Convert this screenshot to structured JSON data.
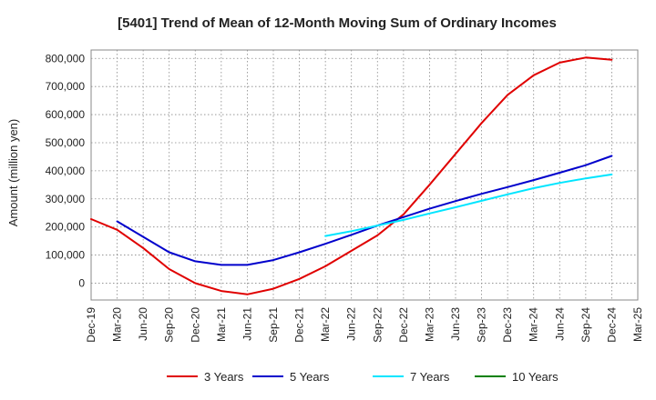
{
  "chart_data": {
    "type": "line",
    "title": "[5401]  Trend of Mean of 12-Month Moving Sum of Ordinary Incomes",
    "xlabel": "",
    "ylabel": "Amount (million yen)",
    "ylim": [
      -60000,
      830000
    ],
    "yticks": [
      0,
      100000,
      200000,
      300000,
      400000,
      500000,
      600000,
      700000,
      800000
    ],
    "ytick_labels": [
      "0",
      "100,000",
      "200,000",
      "300,000",
      "400,000",
      "500,000",
      "600,000",
      "700,000",
      "800,000"
    ],
    "categories": [
      "Dec-19",
      "Mar-20",
      "Jun-20",
      "Sep-20",
      "Dec-20",
      "Mar-21",
      "Jun-21",
      "Sep-21",
      "Dec-21",
      "Mar-22",
      "Jun-22",
      "Sep-22",
      "Dec-22",
      "Mar-23",
      "Jun-23",
      "Sep-23",
      "Dec-23",
      "Mar-24",
      "Jun-24",
      "Sep-24",
      "Dec-24",
      "Mar-25"
    ],
    "grid": true,
    "legend_position": "bottom",
    "series": [
      {
        "name": "3 Years",
        "color": "#e00000",
        "values": [
          228000,
          190000,
          125000,
          50000,
          0,
          -28000,
          -40000,
          -20000,
          15000,
          60000,
          115000,
          170000,
          245000,
          350000,
          460000,
          570000,
          670000,
          740000,
          785000,
          803000,
          795000,
          null
        ]
      },
      {
        "name": "5 Years",
        "color": "#0000cc",
        "values": [
          null,
          220000,
          165000,
          110000,
          78000,
          65000,
          65000,
          82000,
          110000,
          140000,
          172000,
          205000,
          235000,
          265000,
          292000,
          318000,
          342000,
          367000,
          393000,
          420000,
          453000,
          null
        ]
      },
      {
        "name": "7 Years",
        "color": "#00e5ff",
        "values": [
          null,
          null,
          null,
          null,
          null,
          null,
          null,
          null,
          null,
          168000,
          185000,
          205000,
          225000,
          248000,
          270000,
          293000,
          316000,
          338000,
          357000,
          373000,
          387000,
          null
        ]
      },
      {
        "name": "10 Years",
        "color": "#008000",
        "values": [
          null,
          null,
          null,
          null,
          null,
          null,
          null,
          null,
          null,
          null,
          null,
          null,
          null,
          null,
          null,
          null,
          null,
          null,
          null,
          null,
          null,
          null
        ]
      }
    ]
  }
}
